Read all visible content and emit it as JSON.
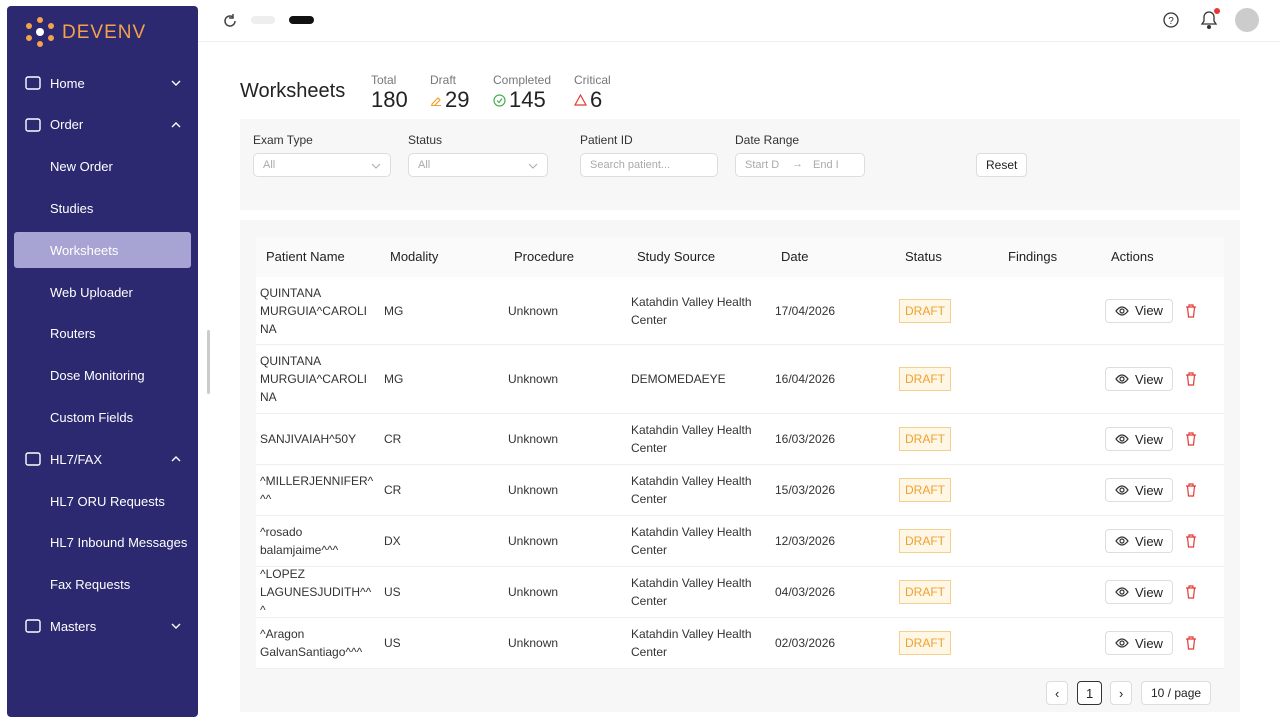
{
  "brand": "DEVENV",
  "nav": [
    {
      "label": "Home"
    },
    {
      "label": "Order",
      "children": [
        "New Order",
        "Studies",
        "Worksheets",
        "Web Uploader",
        "Routers",
        "Dose Monitoring",
        "Custom Fields"
      ]
    },
    {
      "label": "HL7/FAX",
      "children": [
        "HL7 ORU Requests",
        "HL7 Inbound Messages",
        "Fax Requests"
      ]
    },
    {
      "label": "Masters"
    }
  ],
  "page_title": "Worksheets",
  "stats": [
    {
      "label": "Total",
      "value": 180
    },
    {
      "label": "Draft",
      "value": 29
    },
    {
      "label": "Completed",
      "value": 145
    },
    {
      "label": "Critical",
      "value": 6
    }
  ],
  "filters": [
    {
      "label": "Exam Type",
      "placeholder": "All"
    },
    {
      "label": "Status",
      "placeholder": "All"
    },
    {
      "label": "Patient ID",
      "placeholder": "Search patient..."
    },
    {
      "label": "Date Range",
      "start": "Start D",
      "end": "End I"
    }
  ],
  "reset": "Reset",
  "table": {
    "columns": [
      "Patient Name",
      "Modality",
      "Procedure",
      "Study Source",
      "Date",
      "Status",
      "Findings",
      "Actions"
    ],
    "action": "View",
    "rows": [
      [
        "QUINTANA MURGUIA^CAROLINA",
        "MG",
        "Unknown",
        "Katahdin Valley Health Center",
        "17/04/2026",
        "DRAFT"
      ],
      [
        "QUINTANA MURGUIA^CAROLINA",
        "MG",
        "Unknown",
        "DEMOMEDAEYE",
        "16/04/2026",
        "DRAFT"
      ],
      [
        "SANJIVAIAH^50Y",
        "CR",
        "Unknown",
        "Katahdin Valley Health Center",
        "16/03/2026",
        "DRAFT"
      ],
      [
        "^MILLERJENNIFER^^^",
        "CR",
        "Unknown",
        "Katahdin Valley Health Center",
        "15/03/2026",
        "DRAFT"
      ],
      [
        "^rosado balamjaime^^^",
        "DX",
        "Unknown",
        "Katahdin Valley Health Center",
        "12/03/2026",
        "DRAFT"
      ],
      [
        "^LOPEZ LAGUNESJUDITH^^^",
        "US",
        "Unknown",
        "Katahdin Valley Health Center",
        "04/03/2026",
        "DRAFT"
      ],
      [
        "^Aragon GalvanSantiago^^^",
        "US",
        "Unknown",
        "Katahdin Valley Health Center",
        "02/03/2026",
        "DRAFT"
      ]
    ]
  },
  "pagination": {
    "page": 1,
    "page_size": "10 / page"
  }
}
